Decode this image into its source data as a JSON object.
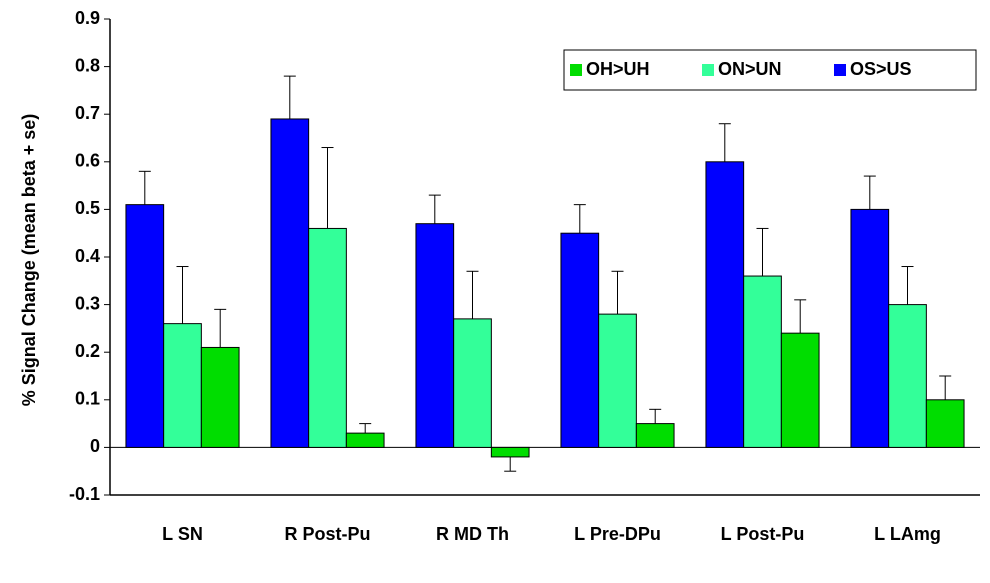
{
  "chart_data": {
    "type": "bar",
    "y_label": "% Signal Change (mean beta + se)",
    "categories": [
      "L SN",
      "R Post-Pu",
      "R MD Th",
      "L Pre-DPu",
      "L Post-Pu",
      "L LAmg"
    ],
    "series": [
      {
        "name": "OS>US",
        "color": "#0000ff",
        "values": [
          0.51,
          0.69,
          0.47,
          0.45,
          0.6,
          0.5
        ],
        "errors": [
          0.07,
          0.09,
          0.06,
          0.06,
          0.08,
          0.07
        ]
      },
      {
        "name": "ON>UN",
        "color": "#33ff99",
        "values": [
          0.26,
          0.46,
          0.27,
          0.28,
          0.36,
          0.3
        ],
        "errors": [
          0.12,
          0.17,
          0.1,
          0.09,
          0.1,
          0.08
        ]
      },
      {
        "name": "OH>UH",
        "color": "#00dd00",
        "values": [
          0.21,
          0.03,
          -0.02,
          0.05,
          0.24,
          0.1
        ],
        "errors": [
          0.08,
          0.02,
          0.03,
          0.03,
          0.07,
          0.05
        ]
      }
    ],
    "legend_order": [
      "OH>UH",
      "ON>UN",
      "OS>US"
    ],
    "ylim": [
      -0.1,
      0.9
    ],
    "yticks": [
      -0.1,
      0,
      0.1,
      0.2,
      0.3,
      0.4,
      0.5,
      0.6,
      0.7,
      0.8,
      0.9
    ],
    "grid": false,
    "legend": "top-right"
  }
}
